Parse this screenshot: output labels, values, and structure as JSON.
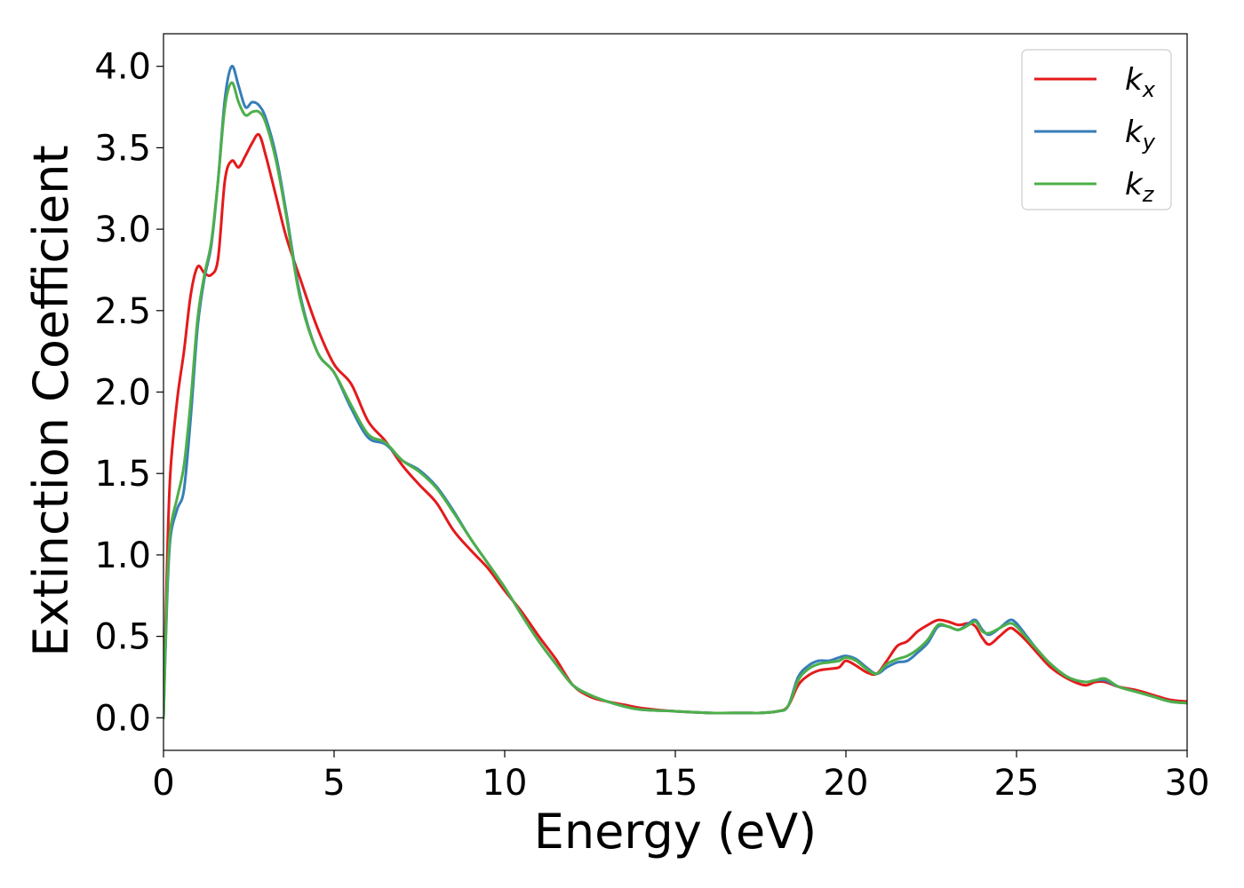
{
  "chart_data": {
    "type": "line",
    "xlabel": "Energy (eV)",
    "ylabel": "Extinction Coefficient",
    "xlim": [
      0,
      30
    ],
    "ylim": [
      -0.2,
      4.2
    ],
    "xticks": [
      0,
      5,
      10,
      15,
      20,
      25,
      30
    ],
    "xtick_labels": [
      "0",
      "5",
      "10",
      "15",
      "20",
      "25",
      "30"
    ],
    "yticks": [
      0.0,
      0.5,
      1.0,
      1.5,
      2.0,
      2.5,
      3.0,
      3.5,
      4.0
    ],
    "ytick_labels": [
      "0.0",
      "0.5",
      "1.0",
      "1.5",
      "2.0",
      "2.5",
      "3.0",
      "3.5",
      "4.0"
    ],
    "grid": false,
    "legend_position": "top-right",
    "series": [
      {
        "name": "k_x",
        "label_main": "k",
        "label_sub": "x",
        "color": "#e41a1c",
        "x": [
          0,
          0.1,
          0.2,
          0.4,
          0.6,
          0.8,
          1.0,
          1.2,
          1.4,
          1.6,
          1.8,
          2.0,
          2.2,
          2.4,
          2.6,
          2.8,
          3.0,
          3.3,
          3.6,
          4.0,
          4.5,
          5.0,
          5.5,
          6.0,
          6.5,
          7.0,
          7.5,
          8.0,
          8.5,
          9.0,
          9.5,
          10.0,
          10.5,
          11.0,
          11.5,
          12.0,
          12.5,
          13.0,
          13.5,
          14.0,
          15.0,
          16.0,
          17.0,
          17.5,
          18.0,
          18.3,
          18.6,
          18.9,
          19.2,
          19.5,
          19.8,
          20.0,
          20.3,
          20.6,
          20.9,
          21.2,
          21.5,
          21.8,
          22.1,
          22.4,
          22.7,
          23.0,
          23.3,
          23.6,
          23.8,
          24.0,
          24.2,
          24.5,
          24.8,
          25.0,
          25.3,
          25.6,
          26.0,
          26.5,
          27.0,
          27.3,
          27.6,
          28.0,
          28.5,
          29.0,
          29.5,
          30.0
        ],
        "values": [
          0.0,
          0.9,
          1.5,
          1.95,
          2.25,
          2.6,
          2.77,
          2.73,
          2.72,
          2.82,
          3.3,
          3.42,
          3.38,
          3.45,
          3.53,
          3.58,
          3.45,
          3.2,
          2.95,
          2.7,
          2.4,
          2.17,
          2.05,
          1.82,
          1.7,
          1.55,
          1.43,
          1.32,
          1.15,
          1.03,
          0.92,
          0.78,
          0.65,
          0.5,
          0.36,
          0.2,
          0.13,
          0.1,
          0.08,
          0.06,
          0.04,
          0.03,
          0.03,
          0.03,
          0.04,
          0.07,
          0.2,
          0.26,
          0.29,
          0.3,
          0.31,
          0.35,
          0.32,
          0.28,
          0.27,
          0.35,
          0.44,
          0.47,
          0.53,
          0.57,
          0.6,
          0.59,
          0.57,
          0.58,
          0.56,
          0.49,
          0.45,
          0.5,
          0.55,
          0.53,
          0.47,
          0.4,
          0.31,
          0.24,
          0.2,
          0.22,
          0.22,
          0.19,
          0.17,
          0.14,
          0.11,
          0.1
        ]
      },
      {
        "name": "k_y",
        "label_main": "k",
        "label_sub": "y",
        "color": "#377eb8",
        "x": [
          0,
          0.1,
          0.2,
          0.4,
          0.6,
          0.8,
          1.0,
          1.2,
          1.4,
          1.6,
          1.8,
          2.0,
          2.2,
          2.4,
          2.6,
          2.8,
          3.0,
          3.3,
          3.6,
          4.0,
          4.5,
          5.0,
          5.5,
          6.0,
          6.5,
          7.0,
          7.5,
          8.0,
          8.5,
          9.0,
          9.5,
          10.0,
          10.5,
          11.0,
          11.5,
          12.0,
          12.5,
          13.0,
          13.5,
          14.0,
          15.0,
          16.0,
          17.0,
          17.5,
          18.0,
          18.3,
          18.6,
          18.9,
          19.2,
          19.5,
          19.8,
          20.0,
          20.3,
          20.6,
          20.9,
          21.2,
          21.5,
          21.8,
          22.1,
          22.4,
          22.7,
          23.0,
          23.3,
          23.6,
          23.8,
          24.0,
          24.2,
          24.5,
          24.8,
          25.0,
          25.3,
          25.6,
          26.0,
          26.5,
          27.0,
          27.3,
          27.6,
          28.0,
          28.5,
          29.0,
          29.5,
          30.0
        ],
        "values": [
          0.0,
          0.7,
          1.1,
          1.28,
          1.4,
          1.85,
          2.4,
          2.7,
          2.9,
          3.3,
          3.8,
          4.0,
          3.88,
          3.75,
          3.78,
          3.76,
          3.68,
          3.45,
          3.1,
          2.6,
          2.25,
          2.12,
          1.9,
          1.72,
          1.68,
          1.58,
          1.52,
          1.42,
          1.27,
          1.1,
          0.95,
          0.8,
          0.63,
          0.47,
          0.33,
          0.2,
          0.14,
          0.1,
          0.07,
          0.05,
          0.04,
          0.03,
          0.03,
          0.03,
          0.04,
          0.07,
          0.25,
          0.32,
          0.35,
          0.35,
          0.37,
          0.38,
          0.36,
          0.31,
          0.27,
          0.31,
          0.34,
          0.35,
          0.4,
          0.46,
          0.56,
          0.56,
          0.54,
          0.58,
          0.6,
          0.54,
          0.51,
          0.55,
          0.6,
          0.58,
          0.5,
          0.42,
          0.33,
          0.25,
          0.22,
          0.23,
          0.23,
          0.19,
          0.16,
          0.13,
          0.1,
          0.09
        ]
      },
      {
        "name": "k_z",
        "label_main": "k",
        "label_sub": "z",
        "color": "#4daf4a",
        "x": [
          0,
          0.1,
          0.2,
          0.4,
          0.6,
          0.8,
          1.0,
          1.2,
          1.4,
          1.6,
          1.8,
          2.0,
          2.2,
          2.4,
          2.6,
          2.8,
          3.0,
          3.3,
          3.6,
          4.0,
          4.5,
          5.0,
          5.5,
          6.0,
          6.5,
          7.0,
          7.5,
          8.0,
          8.5,
          9.0,
          9.5,
          10.0,
          10.5,
          11.0,
          11.5,
          12.0,
          12.5,
          13.0,
          13.5,
          14.0,
          15.0,
          16.0,
          17.0,
          17.5,
          18.0,
          18.3,
          18.6,
          18.9,
          19.2,
          19.5,
          19.8,
          20.0,
          20.3,
          20.6,
          20.9,
          21.2,
          21.5,
          21.8,
          22.1,
          22.4,
          22.7,
          23.0,
          23.3,
          23.6,
          23.8,
          24.0,
          24.2,
          24.5,
          24.8,
          25.0,
          25.3,
          25.6,
          26.0,
          26.5,
          27.0,
          27.3,
          27.6,
          28.0,
          28.5,
          29.0,
          29.5,
          30.0
        ],
        "values": [
          0.0,
          0.75,
          1.15,
          1.35,
          1.55,
          1.95,
          2.45,
          2.72,
          2.92,
          3.3,
          3.75,
          3.9,
          3.78,
          3.7,
          3.72,
          3.72,
          3.65,
          3.42,
          3.08,
          2.58,
          2.25,
          2.12,
          1.92,
          1.74,
          1.69,
          1.58,
          1.51,
          1.41,
          1.26,
          1.1,
          0.95,
          0.8,
          0.63,
          0.47,
          0.33,
          0.2,
          0.14,
          0.1,
          0.07,
          0.05,
          0.04,
          0.03,
          0.03,
          0.03,
          0.04,
          0.07,
          0.23,
          0.3,
          0.33,
          0.34,
          0.35,
          0.37,
          0.35,
          0.3,
          0.27,
          0.33,
          0.36,
          0.38,
          0.42,
          0.48,
          0.57,
          0.56,
          0.54,
          0.57,
          0.59,
          0.53,
          0.52,
          0.55,
          0.58,
          0.56,
          0.49,
          0.42,
          0.33,
          0.25,
          0.22,
          0.23,
          0.24,
          0.19,
          0.16,
          0.13,
          0.1,
          0.09
        ]
      }
    ]
  }
}
